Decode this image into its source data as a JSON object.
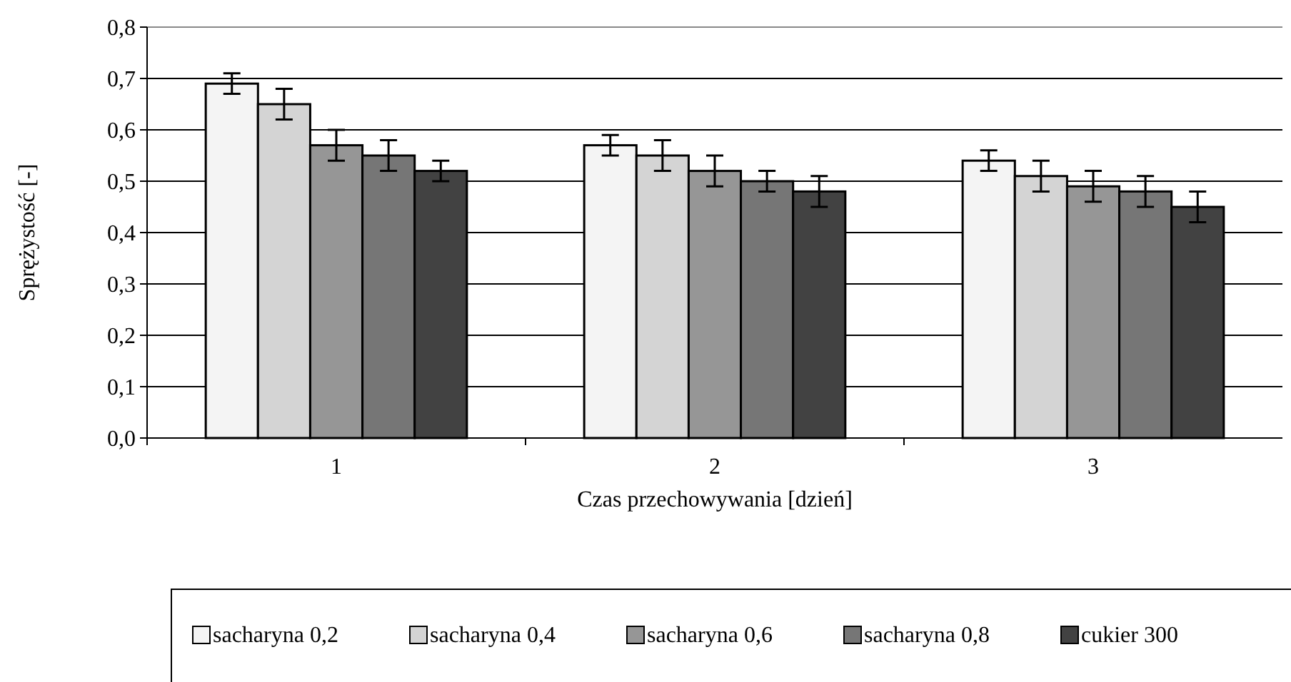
{
  "chart_data": {
    "type": "bar",
    "xlabel": "Czas przechowywania [dzień]",
    "ylabel": "Sprężystość [-]",
    "categories": [
      "1",
      "2",
      "3"
    ],
    "series": [
      {
        "name": "sacharyna 0,2",
        "color": "#f4f4f4",
        "values": [
          0.69,
          0.57,
          0.54
        ],
        "errors": [
          0.02,
          0.02,
          0.02
        ]
      },
      {
        "name": "sacharyna 0,4",
        "color": "#d4d4d4",
        "values": [
          0.65,
          0.55,
          0.51
        ],
        "errors": [
          0.03,
          0.03,
          0.03
        ]
      },
      {
        "name": "sacharyna 0,6",
        "color": "#969696",
        "values": [
          0.57,
          0.52,
          0.49
        ],
        "errors": [
          0.03,
          0.03,
          0.03
        ]
      },
      {
        "name": "sacharyna 0,8",
        "color": "#767676",
        "values": [
          0.55,
          0.5,
          0.48
        ],
        "errors": [
          0.03,
          0.02,
          0.03
        ]
      },
      {
        "name": "cukier 300",
        "color": "#424242",
        "values": [
          0.52,
          0.48,
          0.45
        ],
        "errors": [
          0.02,
          0.03,
          0.03
        ]
      }
    ],
    "ylim": [
      0,
      0.8
    ],
    "yticks": [
      {
        "value": 0,
        "label": "0,0"
      },
      {
        "value": 0.1,
        "label": "0,1"
      },
      {
        "value": 0.2,
        "label": "0,2"
      },
      {
        "value": 0.3,
        "label": "0,3"
      },
      {
        "value": 0.4,
        "label": "0,4"
      },
      {
        "value": 0.5,
        "label": "0,5"
      },
      {
        "value": 0.6,
        "label": "0,6"
      },
      {
        "value": 0.7,
        "label": "0,7"
      },
      {
        "value": 0.8,
        "label": "0,8"
      }
    ],
    "grid": "y",
    "legend": "bottom"
  }
}
